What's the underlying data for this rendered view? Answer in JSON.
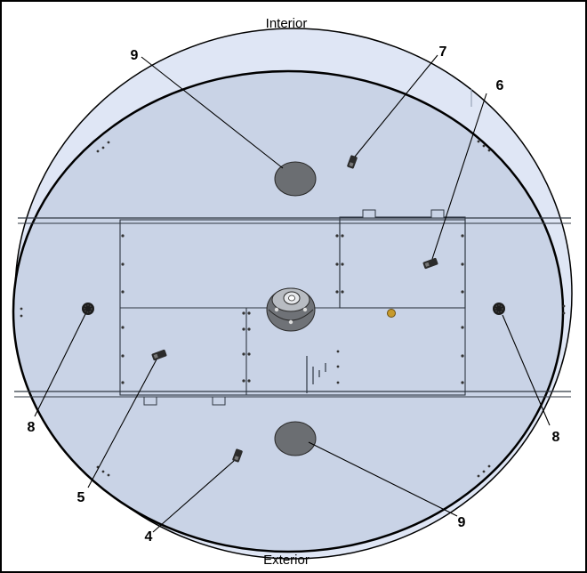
{
  "labels": {
    "top": "Interior",
    "bottom": "Exterior"
  },
  "callouts": [
    "9",
    "7",
    "6",
    "8",
    "8",
    "5",
    "4",
    "9"
  ],
  "colors": {
    "panel": "#c9d3e6",
    "panel_back": "#dfe6f5",
    "outline": "#000000",
    "seam": "#2f3742",
    "disc": "#6b6e72",
    "grille": "#1d1d1d",
    "brass": "#c79a2b"
  }
}
